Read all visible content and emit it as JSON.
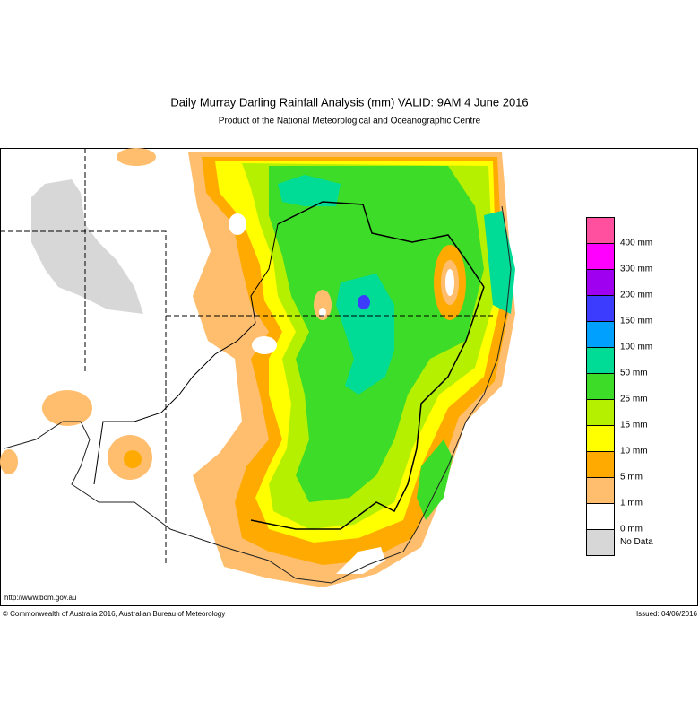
{
  "header": {
    "title": "Daily Murray Darling Rainfall Analysis (mm)  VALID: 9AM  4 June 2016",
    "subtitle": "Product of the National Meteorological and Oceanographic Centre"
  },
  "legend": {
    "entries": [
      {
        "label": "400 mm",
        "color": "#ff4f9f"
      },
      {
        "label": "300 mm",
        "color": "#ff00ff"
      },
      {
        "label": "200 mm",
        "color": "#a000f0"
      },
      {
        "label": "150 mm",
        "color": "#3c3cff"
      },
      {
        "label": "100 mm",
        "color": "#00a0ff"
      },
      {
        "label": "50 mm",
        "color": "#00dc96"
      },
      {
        "label": "25 mm",
        "color": "#3cdc28"
      },
      {
        "label": "15 mm",
        "color": "#b4f000"
      },
      {
        "label": "10 mm",
        "color": "#ffff00"
      },
      {
        "label": "5 mm",
        "color": "#ffaa00"
      },
      {
        "label": "1 mm",
        "color": "#ffbe6e"
      },
      {
        "label": "0 mm",
        "color": "#ffffff"
      },
      {
        "label": "No Data",
        "color": "#d7d7d7"
      }
    ]
  },
  "footer": {
    "url": "http://www.bom.gov.au",
    "copyright": "© Commonwealth of Australia 2016, Australian Bureau of Meteorology",
    "issued": "Issued: 04/06/2016"
  }
}
